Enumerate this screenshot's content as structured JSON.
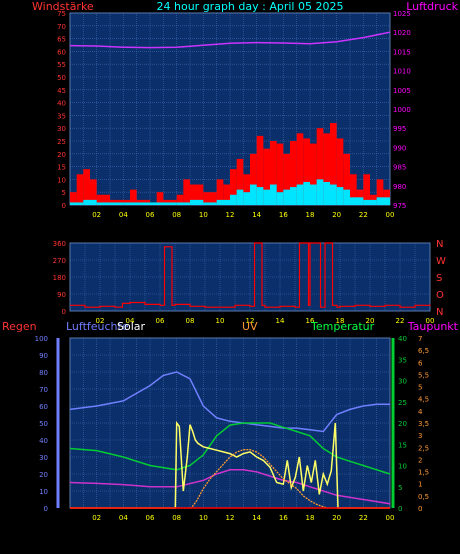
{
  "header": {
    "title": "24 hour graph day : April 05 2025",
    "left_label": "Windstärke",
    "right_label": "Luftdruck"
  },
  "colors": {
    "background": "#000000",
    "plot_bg": "#0a2f6a",
    "grid": "#3a6ab0",
    "wind": "#ff0000",
    "wind_avg": "#00e5ff",
    "pressure": "#cc33ff",
    "direction": "#ff0000",
    "rain": "#ff0000",
    "humidity": "#6f7fff",
    "solar": "#ffff66",
    "uv": "#ff9933",
    "temperature": "#00cc33",
    "dewpoint": "#cc33cc",
    "title": "#00ffff",
    "axis_text": "#ffff00",
    "pressure_text": "#ff00ff"
  },
  "chart_data": [
    {
      "type": "area",
      "title": "24 hour graph day : April 05 2025",
      "ylabel": "Windstärke",
      "y2label": "Luftdruck",
      "x_ticks": [
        "02",
        "04",
        "06",
        "08",
        "10",
        "12",
        "14",
        "16",
        "18",
        "20",
        "22",
        "00"
      ],
      "ylim": [
        0,
        75
      ],
      "yticks": [
        "0",
        "5",
        "10",
        "15",
        "20",
        "25",
        "30",
        "35",
        "40",
        "45",
        "50",
        "55",
        "60",
        "65",
        "70",
        "75"
      ],
      "y2lim": [
        975,
        1025
      ],
      "y2ticks": [
        "975",
        "980",
        "985",
        "990",
        "995",
        "1000",
        "1005",
        "1010",
        "1015",
        "1020",
        "1025"
      ],
      "series": [
        {
          "kind": "wind_gust",
          "x": [
            0.0,
            0.5,
            1.0,
            1.5,
            2.0,
            3.0,
            4.0,
            4.5,
            5.0,
            6.0,
            6.5,
            7.0,
            7.5,
            8.0,
            8.5,
            9.0,
            10.0,
            11.0,
            11.5,
            12.0,
            12.5,
            13.0,
            13.5,
            14.0,
            14.5,
            15.0,
            15.5,
            16.0,
            16.5,
            17.0,
            17.5,
            18.0,
            18.5,
            19.0,
            19.5,
            20.0,
            20.5,
            21.0,
            21.5,
            22.0,
            22.5,
            23.0,
            23.5,
            24.0
          ],
          "values": [
            5,
            12,
            14,
            10,
            4,
            2,
            2,
            6,
            2,
            1,
            5,
            2,
            2,
            4,
            10,
            8,
            5,
            10,
            8,
            14,
            18,
            12,
            20,
            27,
            22,
            25,
            24,
            20,
            25,
            28,
            26,
            24,
            30,
            28,
            32,
            26,
            20,
            12,
            6,
            12,
            4,
            10,
            6,
            4
          ]
        },
        {
          "kind": "wind_avg",
          "x": [
            0.0,
            1.0,
            2.0,
            4.0,
            6.0,
            8.0,
            9.0,
            10.0,
            11.0,
            12.0,
            12.5,
            13.0,
            13.5,
            14.0,
            14.5,
            15.0,
            15.5,
            16.0,
            16.5,
            17.0,
            17.5,
            18.0,
            18.5,
            19.0,
            19.5,
            20.0,
            20.5,
            21.0,
            22.0,
            23.0,
            24.0
          ],
          "values": [
            1,
            2,
            1,
            1,
            1,
            1,
            2,
            1,
            2,
            4,
            6,
            5,
            8,
            7,
            6,
            8,
            5,
            6,
            7,
            8,
            9,
            8,
            10,
            9,
            8,
            7,
            6,
            3,
            2,
            3,
            1
          ]
        },
        {
          "kind": "pressure",
          "x": [
            0,
            2,
            4,
            6,
            8,
            10,
            12,
            14,
            16,
            18,
            20,
            22,
            24
          ],
          "values": [
            1016.5,
            1016.4,
            1016.1,
            1016.0,
            1016.1,
            1016.6,
            1017.1,
            1017.3,
            1017.2,
            1017.0,
            1017.5,
            1018.6,
            1020.0
          ]
        }
      ]
    },
    {
      "type": "line",
      "ylim": [
        0,
        360
      ],
      "yticks": [
        "0",
        "90",
        "180",
        "270",
        "360"
      ],
      "y2ticks": [
        "N",
        "O",
        "S",
        "W",
        "N"
      ],
      "x_ticks": [
        "02",
        "04",
        "06",
        "08",
        "10",
        "12",
        "14",
        "16",
        "18",
        "20",
        "22",
        "00"
      ],
      "series": [
        {
          "kind": "wind_direction",
          "x": [
            0,
            1,
            2,
            3,
            3.5,
            4,
            5,
            6,
            6.3,
            6.5,
            6.8,
            7,
            8,
            9,
            10,
            11,
            12,
            12.3,
            12.5,
            12.8,
            13,
            14,
            15,
            15.3,
            15.6,
            15.9,
            16,
            16.5,
            16.7,
            17,
            17.3,
            17.5,
            17.8,
            18,
            19,
            20,
            21,
            22,
            23,
            24
          ],
          "values": [
            30,
            20,
            25,
            20,
            40,
            45,
            35,
            30,
            340,
            340,
            30,
            35,
            25,
            20,
            20,
            30,
            25,
            360,
            360,
            30,
            20,
            25,
            20,
            360,
            360,
            30,
            360,
            360,
            20,
            360,
            360,
            30,
            20,
            25,
            30,
            25,
            30,
            20,
            30,
            35
          ]
        }
      ]
    },
    {
      "type": "line",
      "labels": [
        "Regen",
        "Luftfeuchte",
        "Solar",
        "UV",
        "Temperatur",
        "Taupunkt"
      ],
      "x_ticks": [
        "02",
        "04",
        "06",
        "08",
        "10",
        "12",
        "14",
        "16",
        "18",
        "20",
        "22",
        "00"
      ],
      "ylim": [
        0,
        100
      ],
      "yticks": [
        "0",
        "10",
        "20",
        "30",
        "40",
        "50",
        "60",
        "70",
        "80",
        "90",
        "100"
      ],
      "y2lim": [
        0,
        40
      ],
      "y2ticks": [
        "0",
        "5",
        "10",
        "15",
        "20",
        "25",
        "30",
        "35",
        "40"
      ],
      "y3ticks": [
        "0",
        "0,5",
        "1",
        "1,5",
        "2",
        "2,5",
        "3",
        "3,5",
        "4",
        "4,5",
        "5",
        "5,5",
        "6",
        "6,5",
        "7"
      ],
      "series": [
        {
          "kind": "humidity",
          "x": [
            0,
            2,
            4,
            6,
            7,
            8,
            9,
            10,
            11,
            12,
            13,
            14,
            15,
            16,
            17,
            18,
            19,
            20,
            21,
            22,
            23,
            24
          ],
          "values": [
            58,
            60,
            63,
            72,
            78,
            80,
            76,
            60,
            53,
            51,
            50,
            49,
            48,
            47,
            47,
            46,
            45,
            55,
            58,
            60,
            61,
            61
          ]
        },
        {
          "kind": "temperature",
          "x": [
            0,
            2,
            4,
            6,
            8,
            9,
            10,
            11,
            12,
            13,
            14,
            15,
            16,
            17,
            18,
            19,
            20,
            21,
            22,
            23,
            24
          ],
          "values": [
            14,
            13.5,
            12,
            10,
            9,
            10,
            12.5,
            17,
            19.5,
            20,
            20,
            20,
            19,
            18,
            17,
            14,
            12,
            11,
            10,
            9,
            8
          ]
        },
        {
          "kind": "dewpoint",
          "x": [
            0,
            2,
            4,
            6,
            8,
            10,
            11,
            12,
            13,
            14,
            15,
            16,
            17,
            18,
            19,
            20,
            21,
            22,
            23,
            24
          ],
          "values": [
            6,
            5.8,
            5.5,
            5,
            5,
            6.5,
            8,
            9,
            9,
            8.5,
            7.5,
            6.5,
            6,
            5,
            4,
            3,
            2.5,
            2,
            1.5,
            1
          ]
        },
        {
          "kind": "solar",
          "x": [
            0,
            7.9,
            8.0,
            8.2,
            8.5,
            8.8,
            9.0,
            9.2,
            9.4,
            9.6,
            10,
            10.5,
            11,
            11.5,
            12,
            12.5,
            13,
            13.5,
            14,
            14.5,
            15,
            15.5,
            16,
            16.3,
            16.6,
            16.9,
            17.2,
            17.5,
            17.8,
            18.1,
            18.4,
            18.7,
            19,
            19.3,
            19.6,
            19.9,
            20.1,
            20.2,
            24
          ],
          "values": [
            0,
            0,
            50,
            48,
            10,
            30,
            49,
            45,
            40,
            38,
            36,
            35,
            34,
            33,
            32,
            30,
            32,
            33,
            30,
            28,
            24,
            15,
            14,
            28,
            12,
            18,
            30,
            10,
            25,
            15,
            28,
            8,
            20,
            14,
            22,
            50,
            0,
            0,
            0
          ]
        },
        {
          "kind": "uv",
          "x": [
            0,
            9.1,
            9.5,
            10,
            10.5,
            11,
            11.5,
            12,
            12.5,
            13,
            13.5,
            14,
            14.5,
            15,
            15.5,
            16,
            16.5,
            17,
            17.5,
            18,
            18.5,
            19,
            19.3,
            24
          ],
          "values": [
            0,
            0,
            0.3,
            0.8,
            1.2,
            1.5,
            1.8,
            2.1,
            2.3,
            2.4,
            2.4,
            2.3,
            2.1,
            1.8,
            1.5,
            1.2,
            1.0,
            0.8,
            0.5,
            0.3,
            0.15,
            0.05,
            0,
            0
          ]
        },
        {
          "kind": "rain",
          "x": [
            0,
            24
          ],
          "values": [
            0,
            0
          ]
        }
      ]
    }
  ]
}
